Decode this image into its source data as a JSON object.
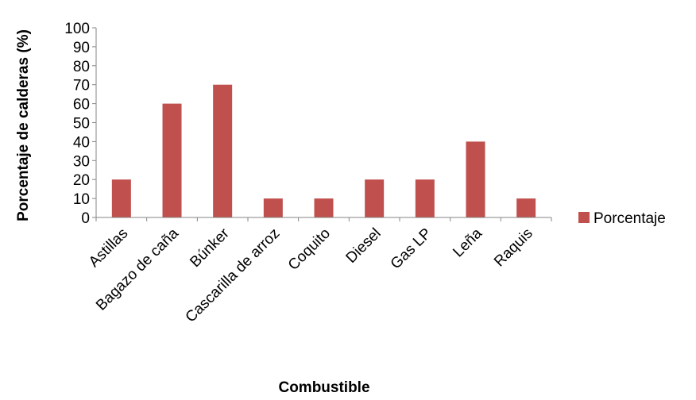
{
  "chart_data": {
    "type": "bar",
    "categories": [
      "Astillas",
      "Bagazo de caña",
      "Búnker",
      "Cascarilla de arroz",
      "Coquito",
      "Diesel",
      "Gas LP",
      "Leña",
      "Raquis"
    ],
    "series": [
      {
        "name": "Porcentaje",
        "values": [
          20,
          60,
          70,
          10,
          10,
          20,
          20,
          40,
          10
        ],
        "color": "#C0504D"
      }
    ],
    "title": "",
    "xlabel": "Combustible",
    "ylabel": "Porcentaje de calderas (%)",
    "ylim": [
      0,
      100
    ],
    "yticks": [
      0,
      10,
      20,
      30,
      40,
      50,
      60,
      70,
      80,
      90,
      100
    ],
    "grid": false,
    "legend": "right"
  }
}
